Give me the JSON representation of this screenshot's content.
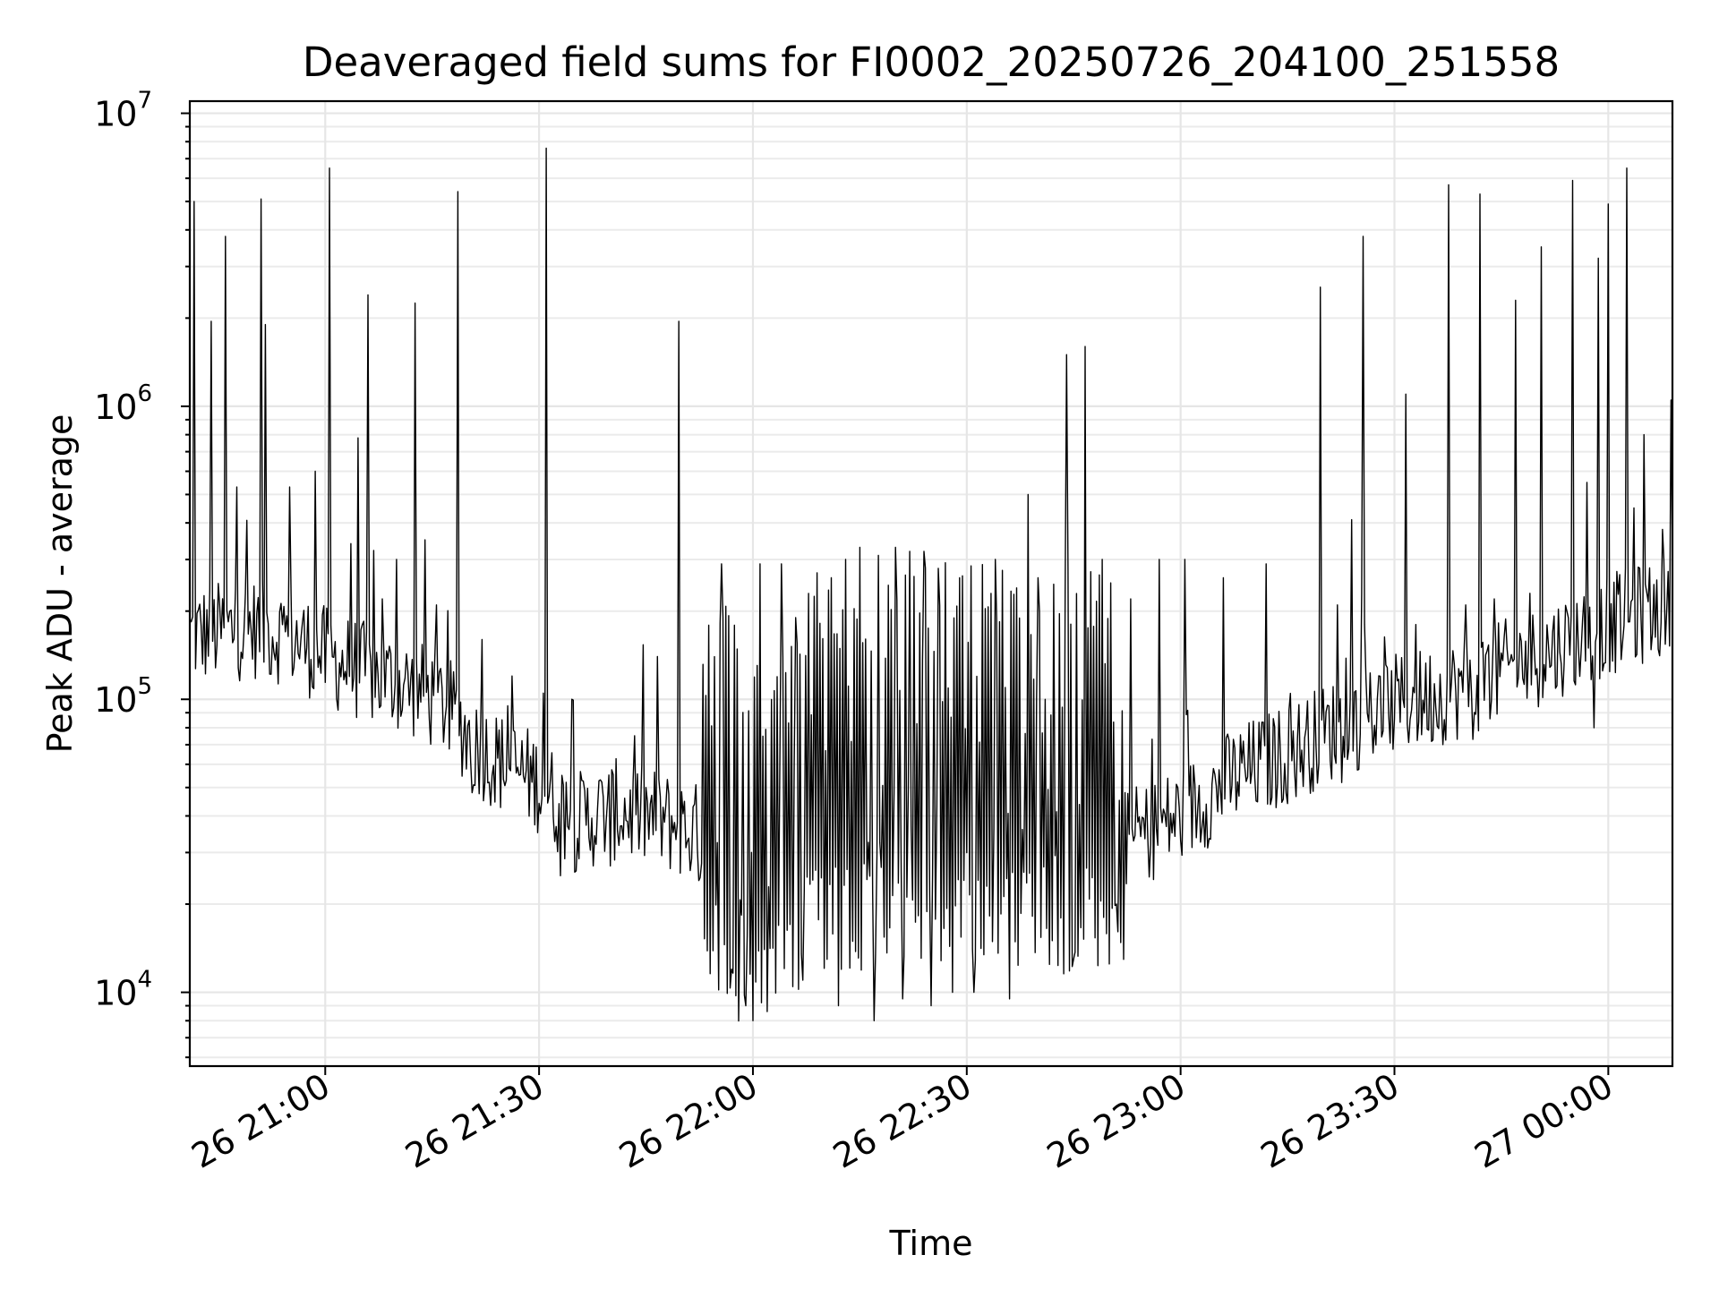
{
  "chart_data": {
    "type": "line",
    "title": "Deaveraged field sums for FI0002_20250726_204100_251558",
    "xlabel": "Time",
    "ylabel": "Peak ADU - average",
    "yscale": "log",
    "ylim": [
      5600,
      11000000
    ],
    "xlim": [
      "2025-07-26 20:41:00",
      "2025-07-27 00:09:00"
    ],
    "grid": true,
    "y_ticks": [
      {
        "base": "10",
        "exp": "4",
        "value": 10000
      },
      {
        "base": "10",
        "exp": "5",
        "value": 100000
      },
      {
        "base": "10",
        "exp": "6",
        "value": 1000000
      },
      {
        "base": "10",
        "exp": "7",
        "value": 10000000
      }
    ],
    "x_ticks": [
      {
        "label": "26 21:00",
        "value": "2025-07-26 21:00:00"
      },
      {
        "label": "26 21:30",
        "value": "2025-07-26 21:30:00"
      },
      {
        "label": "26 22:00",
        "value": "2025-07-26 22:00:00"
      },
      {
        "label": "26 22:30",
        "value": "2025-07-26 22:30:00"
      },
      {
        "label": "26 23:00",
        "value": "2025-07-26 23:00:00"
      },
      {
        "label": "26 23:30",
        "value": "2025-07-26 23:30:00"
      },
      {
        "label": "27 00:00",
        "value": "2025-07-27 00:00:00"
      }
    ],
    "series": [
      {
        "color": "#000000",
        "baseline": [
          [
            "2025-07-26 20:41:00",
            165000
          ],
          [
            "2025-07-26 20:50:00",
            175000
          ],
          [
            "2025-07-26 20:55:00",
            165000
          ],
          [
            "2025-07-26 21:00:00",
            140000
          ],
          [
            "2025-07-26 21:05:00",
            125000
          ],
          [
            "2025-07-26 21:12:00",
            110000
          ],
          [
            "2025-07-26 21:17:00",
            95000
          ],
          [
            "2025-07-26 21:21:00",
            70000
          ],
          [
            "2025-07-26 21:25:00",
            60000
          ],
          [
            "2025-07-26 21:30:00",
            52000
          ],
          [
            "2025-07-26 21:35:00",
            38000
          ],
          [
            "2025-07-26 21:41:00",
            42000
          ],
          [
            "2025-07-26 21:48:00",
            38000
          ],
          [
            "2025-07-26 21:52:00",
            35000
          ],
          [
            "2025-07-26 21:57:00",
            22000
          ],
          [
            "2025-07-26 22:00:00",
            15000
          ],
          [
            "2025-07-26 22:05:00",
            25000
          ],
          [
            "2025-07-26 22:12:00",
            28000
          ],
          [
            "2025-07-26 22:20:00",
            30000
          ],
          [
            "2025-07-26 22:30:00",
            32000
          ],
          [
            "2025-07-26 22:40:00",
            30000
          ],
          [
            "2025-07-26 22:47:00",
            30000
          ],
          [
            "2025-07-26 22:55:00",
            35000
          ],
          [
            "2025-07-26 23:00:00",
            40000
          ],
          [
            "2025-07-26 23:08:00",
            55000
          ],
          [
            "2025-07-26 23:15:00",
            65000
          ],
          [
            "2025-07-26 23:22:00",
            80000
          ],
          [
            "2025-07-26 23:30:00",
            95000
          ],
          [
            "2025-07-26 23:40:00",
            110000
          ],
          [
            "2025-07-26 23:50:00",
            140000
          ],
          [
            "2025-07-27 00:00:00",
            180000
          ],
          [
            "2025-07-27 00:09:00",
            210000
          ]
        ],
        "spikes": [
          [
            "2025-07-26 20:41:30",
            5000000
          ],
          [
            "2025-07-26 20:44:00",
            1950000
          ],
          [
            "2025-07-26 20:46:00",
            3800000
          ],
          [
            "2025-07-26 20:47:30",
            530000
          ],
          [
            "2025-07-26 20:51:00",
            5100000
          ],
          [
            "2025-07-26 20:51:40",
            1900000
          ],
          [
            "2025-07-26 20:55:00",
            530000
          ],
          [
            "2025-07-26 20:58:30",
            600000
          ],
          [
            "2025-07-26 21:00:30",
            6500000
          ],
          [
            "2025-07-26 21:03:30",
            340000
          ],
          [
            "2025-07-26 21:04:30",
            780000
          ],
          [
            "2025-07-26 21:06:00",
            2400000
          ],
          [
            "2025-07-26 21:08:00",
            220000
          ],
          [
            "2025-07-26 21:10:00",
            300000
          ],
          [
            "2025-07-26 21:12:30",
            2250000
          ],
          [
            "2025-07-26 21:14:00",
            350000
          ],
          [
            "2025-07-26 21:15:30",
            210000
          ],
          [
            "2025-07-26 21:18:30",
            5400000
          ],
          [
            "2025-07-26 21:22:00",
            160000
          ],
          [
            "2025-07-26 21:25:30",
            95000
          ],
          [
            "2025-07-26 21:30:30",
            105000
          ],
          [
            "2025-07-26 21:31:00",
            7600000
          ],
          [
            "2025-07-26 21:34:30",
            100000
          ],
          [
            "2025-07-26 21:46:30",
            140000
          ],
          [
            "2025-07-26 21:49:30",
            1950000
          ],
          [
            "2025-07-26 21:55:30",
            290000
          ],
          [
            "2025-07-26 21:59:00",
            130000
          ],
          [
            "2025-07-26 22:01:00",
            290000
          ],
          [
            "2025-07-26 22:04:00",
            290000
          ],
          [
            "2025-07-26 22:06:00",
            190000
          ],
          [
            "2025-07-26 22:09:00",
            270000
          ],
          [
            "2025-07-26 22:11:00",
            260000
          ],
          [
            "2025-07-26 22:13:00",
            300000
          ],
          [
            "2025-07-26 22:15:00",
            330000
          ],
          [
            "2025-07-26 22:17:30",
            310000
          ],
          [
            "2025-07-26 22:20:00",
            330000
          ],
          [
            "2025-07-26 22:22:00",
            320000
          ],
          [
            "2025-07-26 22:24:00",
            320000
          ],
          [
            "2025-07-26 22:26:00",
            280000
          ],
          [
            "2025-07-26 22:29:00",
            260000
          ],
          [
            "2025-07-26 22:31:00",
            250000
          ],
          [
            "2025-07-26 22:34:00",
            300000
          ],
          [
            "2025-07-26 22:37:00",
            240000
          ],
          [
            "2025-07-26 22:38:30",
            500000
          ],
          [
            "2025-07-26 22:40:00",
            260000
          ],
          [
            "2025-07-26 22:42:00",
            280000
          ],
          [
            "2025-07-26 22:44:00",
            1500000
          ],
          [
            "2025-07-26 22:46:30",
            1600000
          ],
          [
            "2025-07-26 22:49:00",
            300000
          ],
          [
            "2025-07-26 22:53:00",
            220000
          ],
          [
            "2025-07-26 22:57:00",
            300000
          ],
          [
            "2025-07-26 23:00:30",
            300000
          ],
          [
            "2025-07-26 23:06:00",
            260000
          ],
          [
            "2025-07-26 23:12:00",
            290000
          ],
          [
            "2025-07-26 23:19:30",
            2550000
          ],
          [
            "2025-07-26 23:22:00",
            210000
          ],
          [
            "2025-07-26 23:22:30",
            220000
          ],
          [
            "2025-07-26 23:24:00",
            410000
          ],
          [
            "2025-07-26 23:25:30",
            3800000
          ],
          [
            "2025-07-26 23:31:30",
            1100000
          ],
          [
            "2025-07-26 23:33:00",
            180000
          ],
          [
            "2025-07-26 23:37:30",
            5700000
          ],
          [
            "2025-07-26 23:40:00",
            210000
          ],
          [
            "2025-07-26 23:42:00",
            5300000
          ],
          [
            "2025-07-26 23:44:00",
            220000
          ],
          [
            "2025-07-26 23:47:00",
            2300000
          ],
          [
            "2025-07-26 23:49:00",
            230000
          ],
          [
            "2025-07-26 23:50:30",
            3500000
          ],
          [
            "2025-07-26 23:55:00",
            5900000
          ],
          [
            "2025-07-26 23:57:00",
            550000
          ],
          [
            "2025-07-26 23:58:30",
            3200000
          ],
          [
            "2025-07-27 00:00:00",
            4900000
          ],
          [
            "2025-07-27 00:02:30",
            6500000
          ],
          [
            "2025-07-27 00:03:30",
            450000
          ],
          [
            "2025-07-27 00:05:00",
            800000
          ],
          [
            "2025-07-27 00:07:30",
            380000
          ],
          [
            "2025-07-27 00:08:45",
            1050000
          ]
        ],
        "dips": [
          [
            "2025-07-26 21:20:30",
            48000
          ],
          [
            "2025-07-26 21:33:00",
            25000
          ],
          [
            "2025-07-26 21:40:00",
            27000
          ],
          [
            "2025-07-26 21:57:00",
            12000
          ],
          [
            "2025-07-26 21:59:00",
            9000
          ],
          [
            "2025-07-26 22:00:00",
            8000
          ],
          [
            "2025-07-26 22:07:00",
            11000
          ],
          [
            "2025-07-26 22:12:00",
            9000
          ],
          [
            "2025-07-26 22:17:00",
            8000
          ],
          [
            "2025-07-26 22:21:00",
            9500
          ],
          [
            "2025-07-26 22:25:00",
            9000
          ],
          [
            "2025-07-26 22:28:00",
            10000
          ],
          [
            "2025-07-26 22:31:00",
            10000
          ],
          [
            "2025-07-26 22:36:00",
            9500
          ],
          [
            "2025-07-26 22:42:00",
            15000
          ],
          [
            "2025-07-26 22:45:00",
            13000
          ],
          [
            "2025-07-26 22:51:00",
            20000
          ],
          [
            "2025-07-26 23:22:30",
            52000
          ],
          [
            "2025-07-26 23:41:00",
            73000
          ],
          [
            "2025-07-26 23:58:00",
            80000
          ],
          [
            "2025-07-27 00:00:30",
            135000
          ]
        ],
        "noise_level": 1.5,
        "noisy_region": [
          "2025-07-26 21:53:00",
          "2025-07-26 22:52:00"
        ],
        "noisy_region_level": 8.5
      }
    ]
  }
}
